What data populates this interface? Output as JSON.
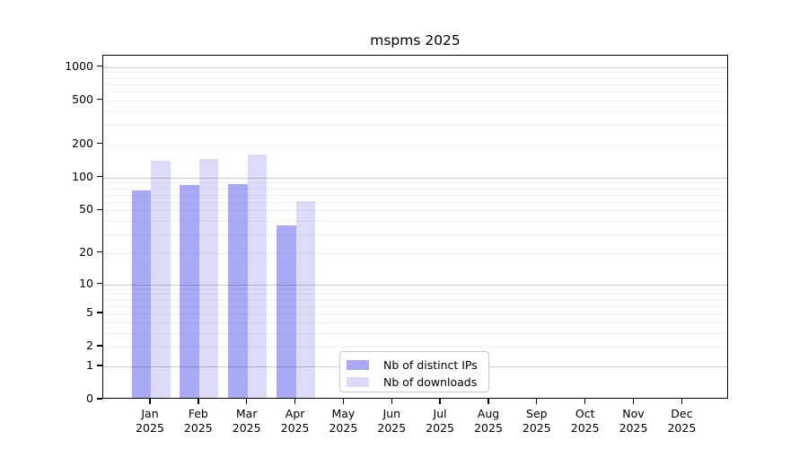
{
  "chart_data": {
    "type": "bar",
    "title": "mspms 2025",
    "categories": [
      "Jan",
      "Feb",
      "Mar",
      "Apr",
      "May",
      "Jun",
      "Jul",
      "Aug",
      "Sep",
      "Oct",
      "Nov",
      "Dec"
    ],
    "year": "2025",
    "series": [
      {
        "name": "Nb of distinct IPs",
        "color": "#a9a9f5",
        "values": [
          73,
          82,
          84,
          35,
          null,
          null,
          null,
          null,
          null,
          null,
          null,
          null
        ]
      },
      {
        "name": "Nb of downloads",
        "color": "#dcdcf8",
        "values": [
          137,
          141,
          155,
          59,
          null,
          null,
          null,
          null,
          null,
          null,
          null,
          null
        ]
      }
    ],
    "y_axis": {
      "scale": "log1p",
      "ticks": [
        0,
        1,
        2,
        5,
        10,
        20,
        50,
        100,
        200,
        500,
        1000
      ],
      "minor_gridlines": [
        2,
        3,
        4,
        5,
        6,
        7,
        8,
        9,
        20,
        30,
        40,
        50,
        60,
        70,
        80,
        90,
        200,
        300,
        400,
        500,
        600,
        700,
        800,
        900
      ],
      "major_gridlines": [
        1,
        10,
        100,
        1000
      ],
      "range_top": 1250
    },
    "xlabel": "",
    "ylabel": "",
    "grid": true,
    "legend_position": "bottom-center-inside"
  },
  "colors": {
    "distinct_ips_bar": "#a9a9f5",
    "downloads_bar": "#dcdcf8",
    "axis": "#000000",
    "major_grid": "#cccccc",
    "minor_grid": "#efefef",
    "legend_border": "#c9c9c9",
    "background": "#ffffff"
  }
}
